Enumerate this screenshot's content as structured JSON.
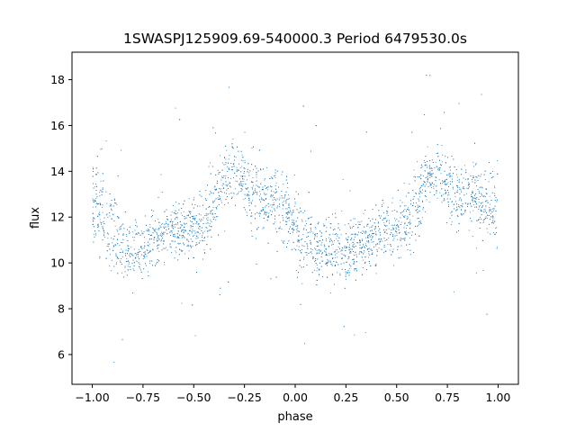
{
  "chart_data": {
    "type": "scatter",
    "title": "1SWASPJ125909.69-540000.3 Period 6479530.0s",
    "xlabel": "phase",
    "ylabel": "flux",
    "xlim": [
      -1.1,
      1.1
    ],
    "ylim": [
      4.7,
      19.2
    ],
    "xticks": [
      -1.0,
      -0.75,
      -0.5,
      -0.25,
      0.0,
      0.25,
      0.5,
      0.75,
      1.0
    ],
    "xtick_labels": [
      "−1.00",
      "−0.75",
      "−0.50",
      "−0.25",
      "0.00",
      "0.25",
      "0.50",
      "0.75",
      "1.00"
    ],
    "yticks": [
      6,
      8,
      10,
      12,
      14,
      16,
      18
    ],
    "ytick_labels": [
      "6",
      "8",
      "10",
      "12",
      "14",
      "16",
      "18"
    ],
    "grid": false,
    "legend": "none",
    "marker_color": "#1f77b4",
    "series": [
      {
        "phase": [
          -1.0,
          -0.95,
          -0.9,
          -0.85,
          -0.8,
          -0.75,
          -0.7,
          -0.65,
          -0.6,
          -0.55,
          -0.5,
          -0.45,
          -0.4,
          -0.35,
          -0.3,
          -0.25,
          -0.2,
          -0.15,
          -0.1,
          -0.05,
          0.0,
          0.05,
          0.1,
          0.15,
          0.2,
          0.25,
          0.3,
          0.35,
          0.4,
          0.45,
          0.5,
          0.55,
          0.6,
          0.65,
          0.7,
          0.75,
          0.8,
          0.85,
          0.9,
          0.95,
          1.0
        ],
        "flux_center": [
          12.6,
          12.2,
          11.3,
          10.8,
          10.6,
          10.7,
          11.0,
          11.2,
          11.4,
          11.5,
          11.6,
          11.7,
          12.6,
          13.7,
          14.0,
          13.4,
          13.0,
          12.9,
          12.9,
          12.3,
          11.6,
          11.0,
          10.8,
          10.7,
          10.6,
          10.5,
          10.6,
          10.9,
          11.2,
          11.6,
          11.5,
          11.8,
          12.6,
          13.6,
          14.0,
          13.4,
          13.0,
          12.9,
          12.9,
          12.4,
          12.6
        ],
        "flux_spread": [
          1.8,
          1.9,
          1.6,
          1.4,
          1.3,
          1.3,
          1.2,
          1.2,
          1.2,
          1.2,
          1.2,
          1.3,
          1.4,
          1.3,
          1.2,
          1.3,
          1.3,
          1.3,
          1.3,
          1.4,
          1.6,
          1.5,
          1.4,
          1.3,
          1.3,
          1.3,
          1.2,
          1.2,
          1.2,
          1.2,
          1.2,
          1.3,
          1.4,
          1.3,
          1.2,
          1.3,
          1.3,
          1.3,
          1.3,
          1.4,
          1.8
        ]
      }
    ]
  }
}
